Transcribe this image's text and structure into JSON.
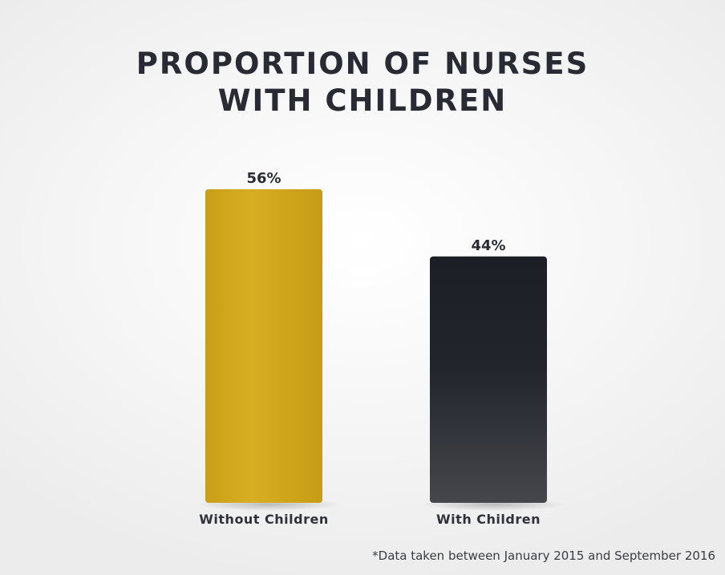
{
  "title": {
    "line1": "PROPORTION OF NURSES",
    "line2": "WITH CHILDREN"
  },
  "footnote": "*Data taken between January 2015 and September 2016",
  "colors": {
    "without_children": "#d2a81c",
    "with_children": "#22252c"
  },
  "chart_data": {
    "type": "bar",
    "title": "PROPORTION OF NURSES WITH CHILDREN",
    "categories": [
      "Without Children",
      "With Children"
    ],
    "values": [
      56,
      44
    ],
    "value_labels": [
      "56%",
      "44%"
    ],
    "ylim": [
      0,
      56
    ],
    "grid": false,
    "legend": "none",
    "xlabel": "",
    "ylabel": ""
  }
}
